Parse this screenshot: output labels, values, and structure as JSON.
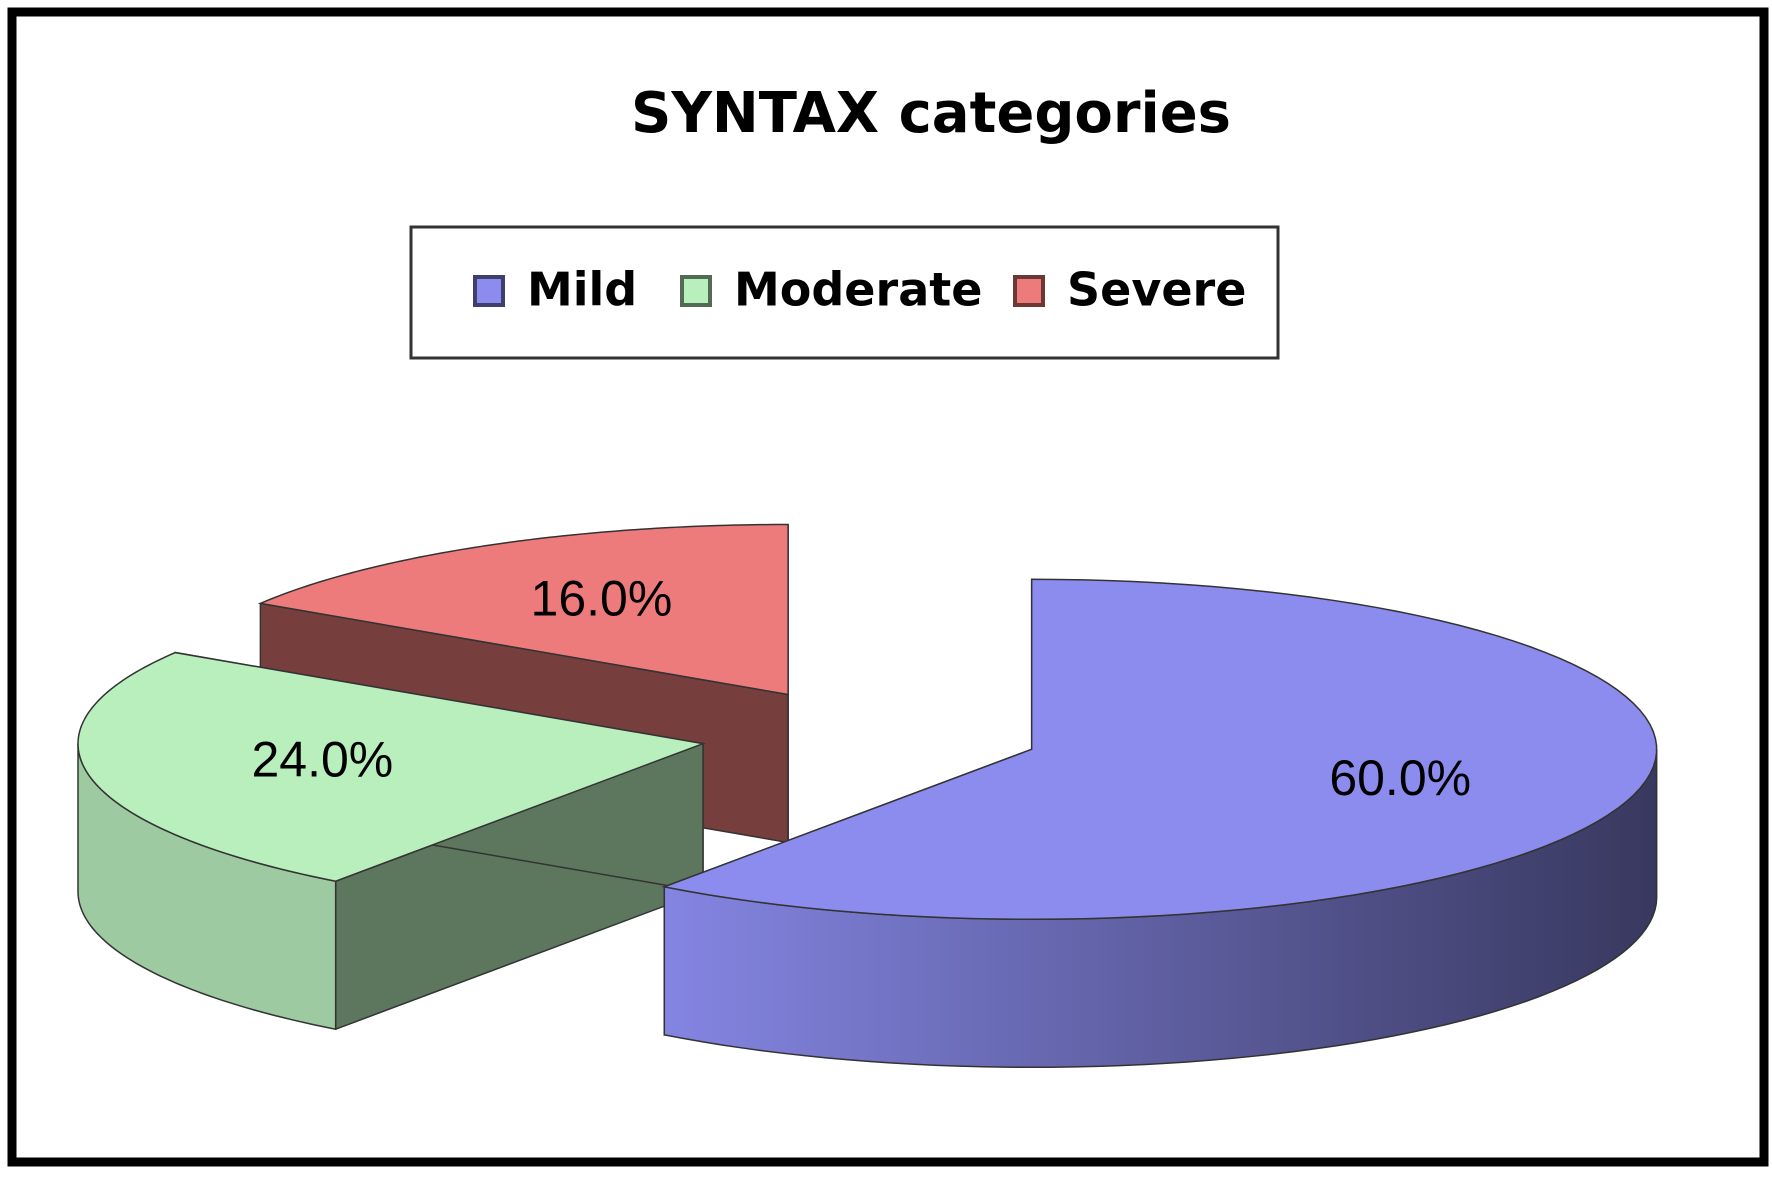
{
  "chart_data": {
    "type": "pie",
    "title": "SYNTAX categories",
    "categories": [
      "Mild",
      "Moderate",
      "Severe"
    ],
    "values": [
      60,
      24,
      16
    ],
    "value_labels": [
      "60.0%",
      "24.0%",
      "16.0%"
    ],
    "colors": [
      "#8b8cee",
      "#b9eebd",
      "#ee7b7b"
    ],
    "legend": "top"
  }
}
